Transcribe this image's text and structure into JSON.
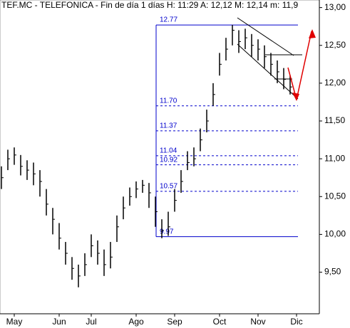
{
  "chart_data": {
    "type": "ohlc",
    "title": "TEF.MC - TELEFONICA - Fin de día 1 días H: 11:29 A: 12,12 M: 12,14 m: 11,9",
    "categories": [
      null,
      null,
      "May",
      null,
      null,
      null,
      null,
      null,
      null,
      "Jun",
      null,
      null,
      null,
      null,
      "Jul",
      null,
      null,
      null,
      null,
      null,
      null,
      "Ago",
      null,
      null,
      null,
      null,
      null,
      "Sep",
      null,
      null,
      null,
      null,
      null,
      null,
      "Oct",
      null,
      null,
      null,
      null,
      null,
      "Nov",
      null,
      null,
      null,
      null,
      null,
      "Dic",
      null,
      null,
      null
    ],
    "high": [
      10.9,
      11.12,
      11.15,
      11.05,
      10.98,
      10.95,
      10.85,
      10.6,
      10.35,
      10.15,
      9.9,
      9.7,
      9.6,
      9.75,
      10.0,
      9.92,
      9.8,
      9.9,
      10.25,
      10.5,
      10.62,
      10.7,
      10.72,
      10.68,
      10.5,
      10.2,
      10.3,
      10.6,
      10.85,
      11.1,
      11.15,
      11.4,
      11.65,
      12.0,
      12.4,
      12.6,
      12.77,
      12.7,
      12.72,
      12.65,
      12.58,
      12.5,
      12.4,
      12.3,
      12.2,
      12.1,
      null,
      null,
      null,
      null
    ],
    "low": [
      10.6,
      10.85,
      10.92,
      10.78,
      10.72,
      10.65,
      10.5,
      10.25,
      10.0,
      9.8,
      9.6,
      9.4,
      9.3,
      9.45,
      9.7,
      9.6,
      9.45,
      9.55,
      9.9,
      10.2,
      10.38,
      10.48,
      10.55,
      10.35,
      10.1,
      9.95,
      9.98,
      10.3,
      10.55,
      10.85,
      10.9,
      11.1,
      11.35,
      11.7,
      12.1,
      12.3,
      12.5,
      12.4,
      12.45,
      12.35,
      12.3,
      12.2,
      12.1,
      12.0,
      11.92,
      11.85,
      null,
      null,
      null,
      null
    ],
    "close": [
      10.75,
      11.0,
      11.05,
      10.9,
      10.85,
      10.8,
      10.7,
      10.4,
      10.2,
      9.95,
      9.75,
      9.55,
      9.45,
      9.6,
      9.85,
      9.75,
      9.6,
      9.7,
      10.1,
      10.35,
      10.5,
      10.6,
      10.65,
      10.55,
      10.3,
      10.05,
      10.1,
      10.45,
      10.7,
      10.95,
      11.0,
      11.25,
      11.5,
      11.85,
      12.25,
      12.45,
      12.7,
      12.55,
      12.6,
      12.5,
      12.45,
      12.35,
      12.25,
      12.15,
      12.05,
      11.95,
      null,
      null,
      null,
      null
    ],
    "color": "#000000",
    "ylim": [
      8.95,
      13.1
    ],
    "yticks": [
      {
        "value": 9.5,
        "label": "9,50"
      },
      {
        "value": 10.0,
        "label": "10,00"
      },
      {
        "value": 10.5,
        "label": "10,50"
      },
      {
        "value": 11.0,
        "label": "11,00"
      },
      {
        "value": 11.5,
        "label": "11,50"
      },
      {
        "value": 12.0,
        "label": "12,00"
      },
      {
        "value": 12.5,
        "label": "12,50"
      },
      {
        "value": 13.0,
        "label": "13,00"
      }
    ],
    "fib_levels": [
      {
        "value": 12.77,
        "label": "12.77"
      },
      {
        "value": 11.7,
        "label": "11.70"
      },
      {
        "value": 11.37,
        "label": "11.37"
      },
      {
        "value": 11.04,
        "label": "11.04"
      },
      {
        "value": 10.92,
        "label": "10.92"
      },
      {
        "value": 10.57,
        "label": "10.57"
      },
      {
        "value": 9.97,
        "label": "9.97"
      }
    ],
    "fib_color": "#0000cc"
  }
}
